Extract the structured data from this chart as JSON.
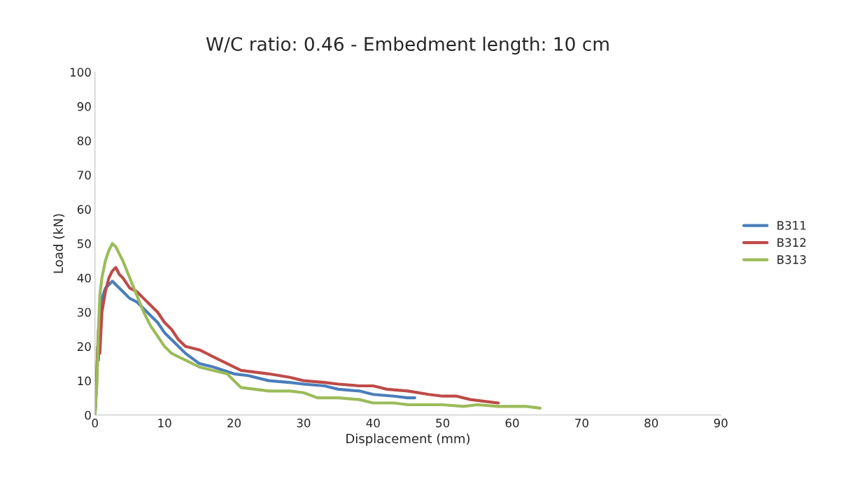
{
  "chart_data": {
    "type": "line",
    "title": "W/C ratio: 0.46 - Embedment length: 10 cm",
    "xlabel": "Displacement (mm)",
    "ylabel": "Load (kN)",
    "xlim": [
      0,
      90
    ],
    "ylim": [
      0,
      100
    ],
    "xticks": [
      0,
      10,
      20,
      30,
      40,
      50,
      60,
      70,
      80,
      90
    ],
    "yticks": [
      0,
      10,
      20,
      30,
      40,
      50,
      60,
      70,
      80,
      90,
      100
    ],
    "grid": false,
    "legend": "right",
    "line_style": "solid",
    "marker": "none",
    "series": [
      {
        "name": "B311",
        "color": "#4a7ebb",
        "x": [
          0,
          0.2,
          0.4,
          0.5,
          0.7,
          1.0,
          1.5,
          2.0,
          2.5,
          3.0,
          4.0,
          5.0,
          6.0,
          7.0,
          8.0,
          9.0,
          10.0,
          11.0,
          12.0,
          13.0,
          15.0,
          17.0,
          20.0,
          22.0,
          25.0,
          28.0,
          30.0,
          33.0,
          35.0,
          38.0,
          40.0,
          43.0,
          45.0,
          46.0
        ],
        "values": [
          0,
          8,
          20,
          16,
          28,
          34,
          37,
          38,
          39,
          38,
          36,
          34,
          33,
          31,
          29,
          27,
          24,
          22,
          20,
          18,
          15,
          14,
          12,
          11.5,
          10,
          9.5,
          9,
          8.5,
          7.5,
          7,
          6,
          5.5,
          5,
          5
        ]
      },
      {
        "name": "B312",
        "color": "#be4b48",
        "x": [
          0,
          0.3,
          0.5,
          0.7,
          1.0,
          1.5,
          2.0,
          2.5,
          3.0,
          3.5,
          4.0,
          5.0,
          6.0,
          7.0,
          8.0,
          9.0,
          10.0,
          11.0,
          12.0,
          13.0,
          15.0,
          17.0,
          19.0,
          21.0,
          23.0,
          25.0,
          28.0,
          30.0,
          33.0,
          35.0,
          38.0,
          40.0,
          42.0,
          45.0,
          48.0,
          50.0,
          52.0,
          54.0,
          56.0,
          58.0
        ],
        "values": [
          0,
          15,
          25,
          18,
          30,
          36,
          40,
          42,
          43,
          41,
          40,
          37,
          36,
          34,
          32,
          30,
          27,
          25,
          22,
          20,
          19,
          17,
          15,
          13,
          12.5,
          12,
          11,
          10,
          9.5,
          9,
          8.5,
          8.5,
          7.5,
          7,
          6,
          5.5,
          5.5,
          4.5,
          4,
          3.5
        ]
      },
      {
        "name": "B313",
        "color": "#9bbb59",
        "x": [
          0,
          0.3,
          0.5,
          0.7,
          1.0,
          1.5,
          2.0,
          2.5,
          3.0,
          3.5,
          4.0,
          5.0,
          6.0,
          7.0,
          8.0,
          9.0,
          10.0,
          11.0,
          12.0,
          13.0,
          15.0,
          17.0,
          19.0,
          21.0,
          23.0,
          25.0,
          28.0,
          30.0,
          32.0,
          35.0,
          38.0,
          40.0,
          43.0,
          45.0,
          48.0,
          50.0,
          53.0,
          55.0,
          58.0,
          60.0,
          62.0,
          64.0
        ],
        "values": [
          0,
          10,
          25,
          35,
          40,
          45,
          48,
          50,
          49,
          47,
          45,
          40,
          35,
          30,
          26,
          23,
          20,
          18,
          17,
          16,
          14,
          13,
          12,
          8,
          7.5,
          7,
          7,
          6.5,
          5,
          5,
          4.5,
          3.5,
          3.5,
          3,
          3,
          3,
          2.5,
          3,
          2.5,
          2.5,
          2.5,
          2
        ]
      }
    ]
  }
}
